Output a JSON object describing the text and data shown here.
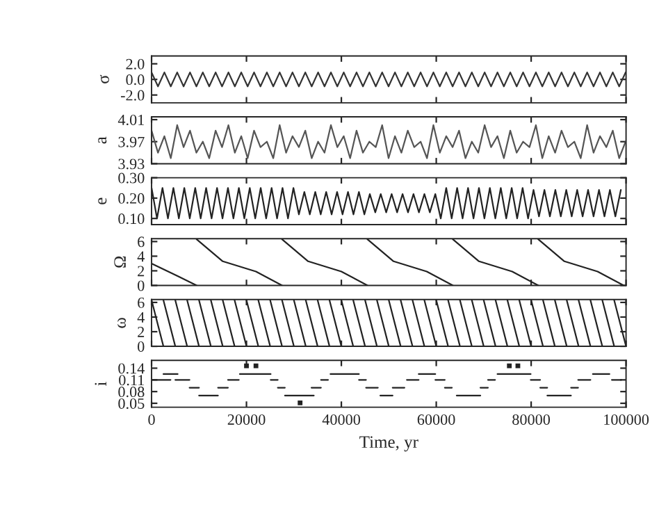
{
  "chart_data": [
    {
      "type": "line",
      "ylabel": "σ",
      "xlim": [
        0,
        100000
      ],
      "xticks": [
        0,
        20000,
        40000,
        60000,
        80000,
        100000
      ],
      "ylim": [
        -3,
        3
      ],
      "yticks": [
        {
          "value": -2,
          "label": "-2.0"
        },
        {
          "value": 0,
          "label": "0.0"
        },
        {
          "value": 2,
          "label": "2.0"
        }
      ],
      "tick_labels": "y",
      "x": [
        0,
        1350,
        2700,
        4050,
        5400,
        6750,
        8100,
        9450,
        10800,
        12150,
        13500,
        14850,
        16200,
        17550,
        18900,
        20250,
        21600,
        22950,
        24300,
        25650,
        27000,
        28350,
        29700,
        31050,
        32400,
        33750,
        35100,
        36450,
        37800,
        39150,
        40500,
        41850,
        43200,
        44550,
        45900,
        47250,
        48600,
        49950,
        51300,
        52650,
        54000,
        55350,
        56700,
        58050,
        59400,
        60750,
        62100,
        63450,
        64800,
        66150,
        67500,
        68850,
        70200,
        71550,
        72900,
        74250,
        75600,
        76950,
        78300,
        79650,
        81000,
        82350,
        83700,
        85050,
        86400,
        87750,
        89100,
        90450,
        91800,
        93150,
        94500,
        95850,
        97200,
        98550,
        99900
      ],
      "series": [
        {
          "color": "#333333",
          "values": [
            0.9,
            -0.9,
            0.9,
            -0.9,
            0.9,
            -0.9,
            0.9,
            -0.9,
            0.9,
            -0.9,
            0.9,
            -0.9,
            0.9,
            -0.9,
            0.9,
            -0.9,
            0.9,
            -0.9,
            0.9,
            -0.9,
            0.9,
            -0.9,
            0.9,
            -0.9,
            0.9,
            -0.9,
            0.9,
            -0.9,
            0.9,
            -0.9,
            0.9,
            -0.9,
            0.9,
            -0.9,
            0.9,
            -0.9,
            0.9,
            -0.9,
            0.9,
            -0.9,
            0.9,
            -0.9,
            0.9,
            -0.9,
            0.9,
            -0.9,
            0.9,
            -0.9,
            0.9,
            -0.9,
            0.9,
            -0.9,
            0.9,
            -0.9,
            0.9,
            -0.9,
            0.9,
            -0.9,
            0.9,
            -0.9,
            0.9,
            -0.9,
            0.9,
            -0.9,
            0.9,
            -0.9,
            0.9,
            -0.9,
            0.9,
            -0.9,
            0.9,
            -0.9,
            0.9,
            -0.9,
            0.9
          ]
        }
      ]
    },
    {
      "type": "line",
      "ylabel": "a",
      "xlim": [
        0,
        100000
      ],
      "xticks": [
        0,
        20000,
        40000,
        60000,
        80000,
        100000
      ],
      "ylim": [
        3.93,
        4.015
      ],
      "yticks": [
        3.93,
        3.97,
        4.01
      ],
      "tick_labels": "y",
      "x": [
        0,
        1350,
        2700,
        4050,
        5400,
        6750,
        8100,
        9450,
        10800,
        12150,
        13500,
        14850,
        16200,
        17550,
        18900,
        20250,
        21600,
        22950,
        24300,
        25650,
        27000,
        28350,
        29700,
        31050,
        32400,
        33750,
        35100,
        36450,
        37800,
        39150,
        40500,
        41850,
        43200,
        44550,
        45900,
        47250,
        48600,
        49950,
        51300,
        52650,
        54000,
        55350,
        56700,
        58050,
        59400,
        60750,
        62100,
        63450,
        64800,
        66150,
        67500,
        68850,
        70200,
        71550,
        72900,
        74250,
        75600,
        76950,
        78300,
        79650,
        81000,
        82350,
        83700,
        85050,
        86400,
        87750,
        89100,
        90450,
        91800,
        93150,
        94500,
        95850,
        97200,
        98550,
        99900
      ],
      "series": [
        {
          "color": "#555555",
          "values": [
            3.99,
            3.95,
            3.98,
            3.94,
            4.0,
            3.96,
            3.99,
            3.95,
            3.97,
            3.94,
            3.99,
            3.96,
            4.0,
            3.95,
            3.98,
            3.94,
            3.99,
            3.96,
            3.97,
            3.94,
            4.0,
            3.95,
            3.98,
            3.96,
            3.99,
            3.94,
            3.97,
            3.95,
            4.0,
            3.96,
            3.98,
            3.94,
            3.99,
            3.95,
            3.97,
            3.96,
            4.0,
            3.94,
            3.98,
            3.95,
            3.99,
            3.96,
            3.97,
            3.94,
            4.0,
            3.95,
            3.98,
            3.96,
            3.99,
            3.94,
            3.97,
            3.95,
            4.0,
            3.96,
            3.98,
            3.94,
            3.99,
            3.95,
            3.97,
            3.96,
            4.0,
            3.94,
            3.98,
            3.95,
            3.99,
            3.96,
            3.97,
            3.94,
            4.0,
            3.95,
            3.98,
            3.96,
            3.99,
            3.94,
            3.97
          ]
        }
      ]
    },
    {
      "type": "line",
      "ylabel": "e",
      "xlim": [
        0,
        100000
      ],
      "xticks": [
        0,
        20000,
        40000,
        60000,
        80000,
        100000
      ],
      "ylim": [
        0.07,
        0.3
      ],
      "yticks": [
        {
          "value": 0.1,
          "label": "0.10"
        },
        {
          "value": 0.2,
          "label": "0.20"
        },
        {
          "value": 0.3,
          "label": "0.30"
        }
      ],
      "tick_labels": "y",
      "x": [
        0,
        1150,
        2300,
        3450,
        4600,
        5750,
        6900,
        8050,
        9200,
        10350,
        11500,
        12650,
        13800,
        14950,
        16100,
        17250,
        18400,
        19550,
        20700,
        21850,
        23000,
        24150,
        25300,
        26450,
        27600,
        28750,
        29900,
        31050,
        32200,
        33350,
        34500,
        35650,
        36800,
        37950,
        39100,
        40250,
        41400,
        42550,
        43700,
        44850,
        46000,
        47150,
        48300,
        49450,
        50600,
        51750,
        52900,
        54050,
        55200,
        56350,
        57500,
        58650,
        59800,
        60950,
        62100,
        63250,
        64400,
        65550,
        66700,
        67850,
        69000,
        70150,
        71300,
        72450,
        73600,
        74750,
        75900,
        77050,
        78200,
        79350,
        80500,
        81650,
        82800,
        83950,
        85100,
        86250,
        87400,
        88550,
        89700,
        90850,
        92000,
        93150,
        94300,
        95450,
        96600,
        97750,
        98900
      ],
      "series": [
        {
          "color": "#222222",
          "values": [
            0.25,
            0.1,
            0.25,
            0.1,
            0.25,
            0.1,
            0.25,
            0.1,
            0.25,
            0.1,
            0.25,
            0.1,
            0.25,
            0.1,
            0.25,
            0.1,
            0.25,
            0.1,
            0.25,
            0.1,
            0.25,
            0.1,
            0.25,
            0.1,
            0.25,
            0.1,
            0.25,
            0.12,
            0.23,
            0.12,
            0.23,
            0.12,
            0.23,
            0.12,
            0.23,
            0.12,
            0.23,
            0.12,
            0.23,
            0.12,
            0.22,
            0.13,
            0.22,
            0.13,
            0.22,
            0.13,
            0.22,
            0.13,
            0.22,
            0.13,
            0.22,
            0.13,
            0.22,
            0.1,
            0.25,
            0.1,
            0.25,
            0.1,
            0.25,
            0.1,
            0.25,
            0.1,
            0.25,
            0.1,
            0.25,
            0.1,
            0.25,
            0.1,
            0.25,
            0.1,
            0.24,
            0.11,
            0.24,
            0.11,
            0.24,
            0.11,
            0.24,
            0.11,
            0.24,
            0.11,
            0.24,
            0.11,
            0.24,
            0.11,
            0.24,
            0.11,
            0.24
          ]
        }
      ]
    },
    {
      "type": "line",
      "ylabel": "Ω",
      "xlim": [
        0,
        100000
      ],
      "xticks": [
        0,
        20000,
        40000,
        60000,
        80000,
        100000
      ],
      "ylim": [
        0,
        6.4
      ],
      "yticks": [
        0,
        2,
        4,
        6
      ],
      "tick_labels": "y",
      "series": [
        {
          "color": "#222222",
          "x": [
            0,
            4500,
            9500
          ],
          "values": [
            3.0,
            1.6,
            0
          ]
        },
        {
          "color": "#222222",
          "x": [
            9500,
            15000,
            22000,
            27500
          ],
          "values": [
            6.3,
            3.3,
            1.9,
            0
          ]
        },
        {
          "color": "#222222",
          "x": [
            27500,
            33000,
            40000,
            45500
          ],
          "values": [
            6.3,
            3.3,
            1.9,
            0
          ]
        },
        {
          "color": "#222222",
          "x": [
            45500,
            51000,
            58000,
            63500
          ],
          "values": [
            6.3,
            3.3,
            1.9,
            0
          ]
        },
        {
          "color": "#222222",
          "x": [
            63500,
            69000,
            76000,
            81500
          ],
          "values": [
            6.3,
            3.3,
            1.9,
            0
          ]
        },
        {
          "color": "#222222",
          "x": [
            81500,
            87000,
            94000,
            99500
          ],
          "values": [
            6.3,
            3.3,
            1.9,
            0
          ]
        }
      ]
    },
    {
      "type": "line",
      "ylabel": "ω",
      "xlim": [
        0,
        100000
      ],
      "xticks": [
        0,
        20000,
        40000,
        60000,
        80000,
        100000
      ],
      "ylim": [
        0,
        6.4
      ],
      "yticks": [
        0,
        2,
        4,
        6
      ],
      "tick_labels": "y",
      "series": [
        {
          "color": "#222222",
          "x": [
            0,
            2500
          ],
          "values": [
            6.3,
            0
          ]
        },
        {
          "color": "#222222",
          "x": [
            2500,
            5000
          ],
          "values": [
            6.3,
            0
          ]
        },
        {
          "color": "#222222",
          "x": [
            5000,
            7500
          ],
          "values": [
            6.3,
            0
          ]
        },
        {
          "color": "#222222",
          "x": [
            7500,
            10000
          ],
          "values": [
            6.3,
            0
          ]
        },
        {
          "color": "#222222",
          "x": [
            10000,
            12500
          ],
          "values": [
            6.3,
            0
          ]
        },
        {
          "color": "#222222",
          "x": [
            12500,
            15000
          ],
          "values": [
            6.3,
            0
          ]
        },
        {
          "color": "#222222",
          "x": [
            15000,
            17500
          ],
          "values": [
            6.3,
            0
          ]
        },
        {
          "color": "#222222",
          "x": [
            17500,
            20000
          ],
          "values": [
            6.3,
            0
          ]
        },
        {
          "color": "#222222",
          "x": [
            20000,
            22500
          ],
          "values": [
            6.3,
            0
          ]
        },
        {
          "color": "#222222",
          "x": [
            22500,
            25000
          ],
          "values": [
            6.3,
            0
          ]
        },
        {
          "color": "#222222",
          "x": [
            25000,
            27500
          ],
          "values": [
            6.3,
            0
          ]
        },
        {
          "color": "#222222",
          "x": [
            27500,
            30000
          ],
          "values": [
            6.3,
            0
          ]
        },
        {
          "color": "#222222",
          "x": [
            30000,
            32500
          ],
          "values": [
            6.3,
            0
          ]
        },
        {
          "color": "#222222",
          "x": [
            32500,
            35000
          ],
          "values": [
            6.3,
            0
          ]
        },
        {
          "color": "#222222",
          "x": [
            35000,
            37500
          ],
          "values": [
            6.3,
            0
          ]
        },
        {
          "color": "#222222",
          "x": [
            37500,
            40000
          ],
          "values": [
            6.3,
            0
          ]
        },
        {
          "color": "#222222",
          "x": [
            40000,
            42500
          ],
          "values": [
            6.3,
            0
          ]
        },
        {
          "color": "#222222",
          "x": [
            42500,
            45000
          ],
          "values": [
            6.3,
            0
          ]
        },
        {
          "color": "#222222",
          "x": [
            45000,
            47500
          ],
          "values": [
            6.3,
            0
          ]
        },
        {
          "color": "#222222",
          "x": [
            47500,
            50000
          ],
          "values": [
            6.3,
            0
          ]
        },
        {
          "color": "#222222",
          "x": [
            50000,
            52500
          ],
          "values": [
            6.3,
            0
          ]
        },
        {
          "color": "#222222",
          "x": [
            52500,
            55000
          ],
          "values": [
            6.3,
            0
          ]
        },
        {
          "color": "#222222",
          "x": [
            55000,
            57500
          ],
          "values": [
            6.3,
            0
          ]
        },
        {
          "color": "#222222",
          "x": [
            57500,
            60000
          ],
          "values": [
            6.3,
            0
          ]
        },
        {
          "color": "#222222",
          "x": [
            60000,
            62500
          ],
          "values": [
            6.3,
            0
          ]
        },
        {
          "color": "#222222",
          "x": [
            62500,
            65000
          ],
          "values": [
            6.3,
            0
          ]
        },
        {
          "color": "#222222",
          "x": [
            65000,
            67500
          ],
          "values": [
            6.3,
            0
          ]
        },
        {
          "color": "#222222",
          "x": [
            67500,
            70000
          ],
          "values": [
            6.3,
            0
          ]
        },
        {
          "color": "#222222",
          "x": [
            70000,
            72500
          ],
          "values": [
            6.3,
            0
          ]
        },
        {
          "color": "#222222",
          "x": [
            72500,
            75000
          ],
          "values": [
            6.3,
            0
          ]
        },
        {
          "color": "#222222",
          "x": [
            75000,
            77500
          ],
          "values": [
            6.3,
            0
          ]
        },
        {
          "color": "#222222",
          "x": [
            77500,
            80000
          ],
          "values": [
            6.3,
            0
          ]
        },
        {
          "color": "#222222",
          "x": [
            80000,
            82500
          ],
          "values": [
            6.3,
            0
          ]
        },
        {
          "color": "#222222",
          "x": [
            82500,
            85000
          ],
          "values": [
            6.3,
            0
          ]
        },
        {
          "color": "#222222",
          "x": [
            85000,
            87500
          ],
          "values": [
            6.3,
            0
          ]
        },
        {
          "color": "#222222",
          "x": [
            87500,
            90000
          ],
          "values": [
            6.3,
            0
          ]
        },
        {
          "color": "#222222",
          "x": [
            90000,
            92500
          ],
          "values": [
            6.3,
            0
          ]
        },
        {
          "color": "#222222",
          "x": [
            92500,
            95000
          ],
          "values": [
            6.3,
            0
          ]
        },
        {
          "color": "#222222",
          "x": [
            95000,
            97500
          ],
          "values": [
            6.3,
            0
          ]
        },
        {
          "color": "#222222",
          "x": [
            97500,
            100000
          ],
          "values": [
            6.3,
            0
          ]
        }
      ]
    },
    {
      "type": "line",
      "ylabel": "i",
      "xlabel": "Time, yr",
      "xlim": [
        0,
        100000
      ],
      "xticks": [
        0,
        20000,
        40000,
        60000,
        80000,
        100000
      ],
      "ylim": [
        0.04,
        0.16
      ],
      "yticks": [
        0.05,
        0.08,
        0.11,
        0.14
      ],
      "series": [
        {
          "color": "#222222",
          "x": [
            0,
            4000
          ],
          "values": [
            0.11,
            0.11
          ]
        },
        {
          "color": "#222222",
          "x": [
            2500,
            5500
          ],
          "values": [
            0.125,
            0.125
          ]
        },
        {
          "color": "#222222",
          "x": [
            5000,
            8000
          ],
          "values": [
            0.11,
            0.11
          ]
        },
        {
          "color": "#222222",
          "x": [
            8000,
            10000
          ],
          "values": [
            0.09,
            0.09
          ]
        },
        {
          "color": "#222222",
          "x": [
            10000,
            14000
          ],
          "values": [
            0.07,
            0.07
          ]
        },
        {
          "color": "#222222",
          "x": [
            14000,
            16100
          ],
          "values": [
            0.09,
            0.09
          ]
        },
        {
          "color": "#222222",
          "x": [
            16100,
            18400
          ],
          "values": [
            0.11,
            0.11
          ]
        },
        {
          "color": "#222222",
          "x": [
            18600,
            25100
          ],
          "values": [
            0.125,
            0.125
          ]
        },
        {
          "type": "scatter",
          "marker": "square",
          "color": "#222222",
          "x": [
            20000,
            22000,
            31300,
            75400,
            77200
          ],
          "values": [
            0.146,
            0.146,
            0.051,
            0.146,
            0.146
          ]
        },
        {
          "color": "#222222",
          "x": [
            25100,
            26600
          ],
          "values": [
            0.11,
            0.11
          ]
        },
        {
          "color": "#222222",
          "x": [
            26600,
            28100
          ],
          "values": [
            0.09,
            0.09
          ]
        },
        {
          "color": "#222222",
          "x": [
            28100,
            34200
          ],
          "values": [
            0.07,
            0.07
          ]
        },
        {
          "color": "#222222",
          "x": [
            33700,
            35700
          ],
          "values": [
            0.09,
            0.09
          ]
        },
        {
          "color": "#222222",
          "x": [
            35700,
            37200
          ],
          "values": [
            0.11,
            0.11
          ]
        },
        {
          "color": "#222222",
          "x": [
            37700,
            43700
          ],
          "values": [
            0.125,
            0.125
          ]
        },
        {
          "color": "#222222",
          "x": [
            43700,
            45200
          ],
          "values": [
            0.11,
            0.11
          ]
        },
        {
          "color": "#222222",
          "x": [
            45200,
            47700
          ],
          "values": [
            0.09,
            0.09
          ]
        },
        {
          "color": "#222222",
          "x": [
            48200,
            50800
          ],
          "values": [
            0.07,
            0.07
          ]
        },
        {
          "color": "#222222",
          "x": [
            50800,
            53300
          ],
          "values": [
            0.09,
            0.09
          ]
        },
        {
          "color": "#222222",
          "x": [
            53800,
            56300
          ],
          "values": [
            0.11,
            0.11
          ]
        },
        {
          "color": "#222222",
          "x": [
            56300,
            59800
          ],
          "values": [
            0.125,
            0.125
          ]
        },
        {
          "color": "#222222",
          "x": [
            59800,
            61800
          ],
          "values": [
            0.11,
            0.11
          ]
        },
        {
          "color": "#222222",
          "x": [
            61800,
            63300
          ],
          "values": [
            0.09,
            0.09
          ]
        },
        {
          "color": "#222222",
          "x": [
            64300,
            69300
          ],
          "values": [
            0.07,
            0.07
          ]
        },
        {
          "color": "#222222",
          "x": [
            69300,
            70900
          ],
          "values": [
            0.09,
            0.09
          ]
        },
        {
          "color": "#222222",
          "x": [
            70900,
            72400
          ],
          "values": [
            0.11,
            0.11
          ]
        },
        {
          "color": "#222222",
          "x": [
            72900,
            79900
          ],
          "values": [
            0.125,
            0.125
          ]
        },
        {
          "color": "#222222",
          "x": [
            79900,
            81900
          ],
          "values": [
            0.11,
            0.11
          ]
        },
        {
          "color": "#222222",
          "x": [
            81900,
            83400
          ],
          "values": [
            0.09,
            0.09
          ]
        },
        {
          "color": "#222222",
          "x": [
            83400,
            88400
          ],
          "values": [
            0.07,
            0.07
          ]
        },
        {
          "color": "#222222",
          "x": [
            88400,
            89900
          ],
          "values": [
            0.09,
            0.09
          ]
        },
        {
          "color": "#222222",
          "x": [
            89900,
            92500
          ],
          "values": [
            0.11,
            0.11
          ]
        },
        {
          "color": "#222222",
          "x": [
            93000,
            96500
          ],
          "values": [
            0.125,
            0.125
          ]
        },
        {
          "color": "#222222",
          "x": [
            97000,
            99000
          ],
          "values": [
            0.11,
            0.11
          ]
        }
      ]
    }
  ]
}
